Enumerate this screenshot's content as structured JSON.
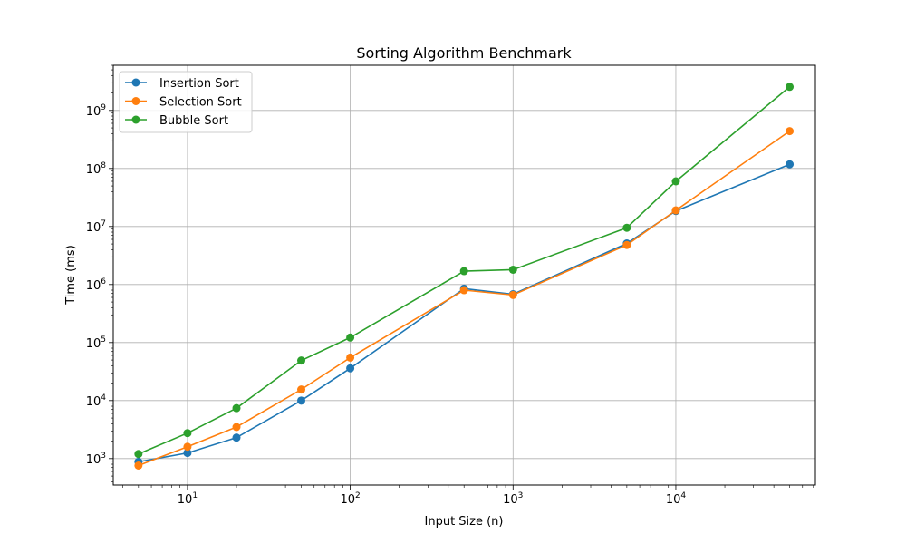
{
  "chart_data": {
    "type": "line",
    "title": "Sorting Algorithm Benchmark",
    "xlabel": "Input Size (n)",
    "ylabel": "Time (ms)",
    "xscale": "log",
    "yscale": "log",
    "xlim": [
      3.5,
      72000
    ],
    "ylim": [
      350,
      6000000000
    ],
    "grid": true,
    "legend_position": "upper-left",
    "x": [
      5,
      10,
      20,
      50,
      100,
      500,
      1000,
      5000,
      10000,
      50000
    ],
    "x_ticks": [
      {
        "value": 10,
        "base": "10",
        "exp": "1"
      },
      {
        "value": 100,
        "base": "10",
        "exp": "2"
      },
      {
        "value": 1000,
        "base": "10",
        "exp": "3"
      },
      {
        "value": 10000,
        "base": "10",
        "exp": "4"
      }
    ],
    "y_ticks": [
      {
        "value": 1000,
        "base": "10",
        "exp": "3"
      },
      {
        "value": 10000,
        "base": "10",
        "exp": "4"
      },
      {
        "value": 100000,
        "base": "10",
        "exp": "5"
      },
      {
        "value": 1000000,
        "base": "10",
        "exp": "6"
      },
      {
        "value": 10000000,
        "base": "10",
        "exp": "7"
      },
      {
        "value": 100000000,
        "base": "10",
        "exp": "8"
      },
      {
        "value": 1000000000,
        "base": "10",
        "exp": "9"
      }
    ],
    "series": [
      {
        "name": "Insertion Sort",
        "color": "#1f77b4",
        "values": [
          880,
          1250,
          2300,
          10000,
          36000,
          850000,
          680000,
          5100000,
          18500000,
          118000000
        ]
      },
      {
        "name": "Selection Sort",
        "color": "#ff7f0e",
        "values": [
          760,
          1600,
          3500,
          15500,
          55000,
          800000,
          660000,
          4800000,
          19000000,
          440000000
        ]
      },
      {
        "name": "Bubble Sort",
        "color": "#2ca02c",
        "values": [
          1200,
          2750,
          7400,
          49000,
          122000,
          1700000,
          1800000,
          9500000,
          60000000,
          2550000000
        ]
      }
    ]
  }
}
